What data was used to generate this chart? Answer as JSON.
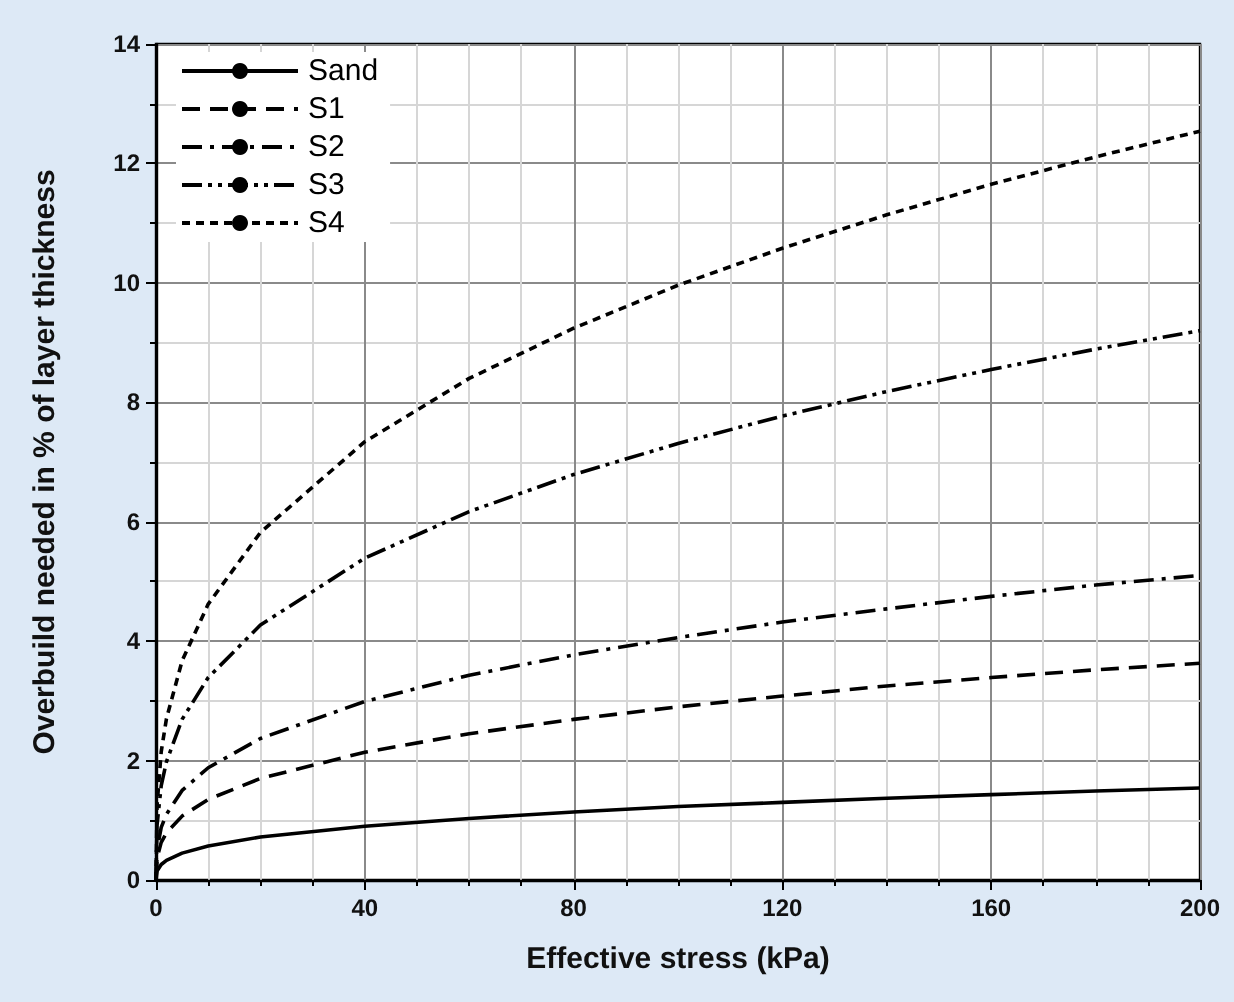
{
  "chart_data": {
    "type": "line",
    "xlabel": "Effective stress (kPa)",
    "ylabel": "Overbuild needed in % of layer thickness",
    "x": [
      0,
      0.2,
      1,
      2,
      5,
      10,
      20,
      40,
      60,
      80,
      100,
      120,
      140,
      160,
      180,
      200
    ],
    "series": [
      {
        "name": "Sand",
        "color": "#000000",
        "line_style": "solid",
        "values": [
          0,
          0.15,
          0.26,
          0.33,
          0.45,
          0.57,
          0.72,
          0.9,
          1.03,
          1.14,
          1.23,
          1.3,
          1.37,
          1.43,
          1.49,
          1.54
        ]
      },
      {
        "name": "S1",
        "color": "#000000",
        "line_style": "dashed",
        "values": [
          0,
          0.37,
          0.63,
          0.79,
          1.07,
          1.35,
          1.7,
          2.14,
          2.45,
          2.69,
          2.9,
          3.08,
          3.25,
          3.39,
          3.52,
          3.63
        ]
      },
      {
        "name": "S2",
        "color": "#000000",
        "line_style": "dashdot",
        "values": [
          0,
          0.51,
          0.88,
          1.1,
          1.5,
          1.88,
          2.37,
          2.99,
          3.43,
          3.77,
          4.06,
          4.32,
          4.54,
          4.75,
          4.94,
          5.1
        ]
      },
      {
        "name": "S3",
        "color": "#000000",
        "line_style": "dashdotdot",
        "values": [
          0,
          0.92,
          1.58,
          1.98,
          2.69,
          3.39,
          4.27,
          5.39,
          6.17,
          6.79,
          7.31,
          7.77,
          8.18,
          8.55,
          8.89,
          9.2
        ]
      },
      {
        "name": "S4",
        "color": "#000000",
        "line_style": "dotted",
        "values": [
          0,
          1.25,
          2.15,
          2.7,
          3.67,
          4.62,
          5.82,
          7.34,
          8.4,
          9.24,
          9.96,
          10.58,
          11.14,
          11.65,
          12.11,
          12.54
        ]
      }
    ],
    "xlim": [
      0,
      200
    ],
    "xticks": [
      0,
      40,
      80,
      120,
      160,
      200
    ],
    "ylim": [
      0,
      14
    ],
    "yticks": [
      0,
      2,
      4,
      6,
      8,
      10,
      12,
      14
    ],
    "grid": true,
    "legend": "top left",
    "marker": "none"
  }
}
